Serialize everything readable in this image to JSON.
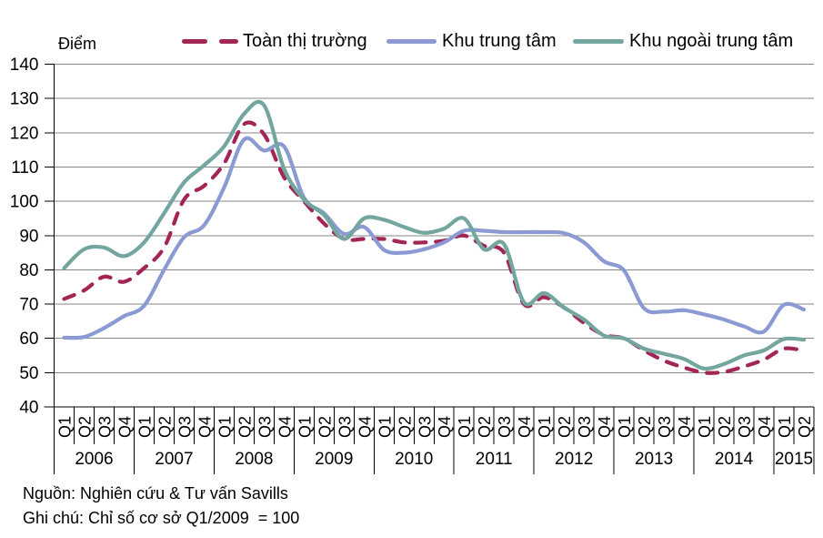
{
  "unit_label": "Điểm",
  "legend": {
    "items": [
      {
        "label": "Toàn thị trường"
      },
      {
        "label": "Khu trung tâm"
      },
      {
        "label": "Khu ngoài trung tâm"
      }
    ]
  },
  "footer": {
    "source": "Nguồn: Nghiên cứu & Tư vấn Savills",
    "note": "Ghi chú: Chỉ số cơ sở Q1/2009  = 100"
  },
  "chart_data": {
    "type": "line",
    "title": "",
    "ylabel": "Điểm",
    "ylim": [
      40,
      140
    ],
    "ytick_step": 10,
    "grid": true,
    "legend_position": "top",
    "x_quarter_labels": [
      "Q1",
      "Q2",
      "Q3",
      "Q4",
      "Q1",
      "Q2",
      "Q3",
      "Q4",
      "Q1",
      "Q2",
      "Q3",
      "Q4",
      "Q1",
      "Q2",
      "Q3",
      "Q4",
      "Q1",
      "Q2",
      "Q3",
      "Q4",
      "Q1",
      "Q2",
      "Q3",
      "Q4",
      "Q1",
      "Q2",
      "Q3",
      "Q4",
      "Q1",
      "Q2",
      "Q3",
      "Q4",
      "Q1",
      "Q2",
      "Q3",
      "Q4",
      "Q1",
      "Q2"
    ],
    "x_year_groups": [
      {
        "label": "2006",
        "quarters": 4
      },
      {
        "label": "2007",
        "quarters": 4
      },
      {
        "label": "2008",
        "quarters": 4
      },
      {
        "label": "2009",
        "quarters": 4
      },
      {
        "label": "2010",
        "quarters": 4
      },
      {
        "label": "2011",
        "quarters": 4
      },
      {
        "label": "2012",
        "quarters": 4
      },
      {
        "label": "2013",
        "quarters": 4
      },
      {
        "label": "2014",
        "quarters": 4
      },
      {
        "label": "2015",
        "quarters": 2
      }
    ],
    "series": [
      {
        "name": "Toàn thị trường",
        "color": "#A22556",
        "style": "dashed",
        "values": [
          71.5,
          74,
          78,
          76.5,
          80.5,
          86.5,
          100.5,
          104.5,
          111,
          122.5,
          119.5,
          107,
          100,
          93.5,
          89,
          89,
          89,
          88,
          88,
          88.5,
          90,
          87,
          85,
          70,
          72,
          69,
          64.5,
          61,
          60,
          56.5,
          53.5,
          51.5,
          50,
          50.2,
          51.8,
          53.8,
          57,
          56.4
        ]
      },
      {
        "name": "Khu trung tâm",
        "color": "#8B9AD2",
        "style": "solid",
        "values": [
          60.2,
          60.4,
          63,
          66.5,
          69.5,
          80,
          89.5,
          93,
          104,
          118,
          114.8,
          116,
          101,
          96.5,
          90.5,
          92.5,
          85.8,
          85,
          86,
          88,
          91.4,
          91.4,
          91,
          91,
          91,
          90.7,
          88,
          82.5,
          79.8,
          68.8,
          67.8,
          68.2,
          67,
          65.5,
          63.5,
          62,
          69.8,
          68.4
        ]
      },
      {
        "name": "Khu ngoài trung tâm",
        "color": "#72A69E",
        "style": "solid",
        "values": [
          80.5,
          86,
          86.5,
          84,
          88,
          96.5,
          105.5,
          110.5,
          116,
          125.5,
          128,
          109.5,
          100.5,
          96,
          89,
          95,
          94.6,
          92.5,
          90.8,
          92,
          95,
          86,
          87.5,
          70.5,
          73.2,
          69,
          65.5,
          60.8,
          60,
          57,
          55.5,
          54,
          51.2,
          52.5,
          55,
          56.5,
          59.8,
          59.6
        ]
      }
    ],
    "colors": {
      "gridline": "#878787",
      "axis": "#000000",
      "text": "#000000"
    }
  }
}
